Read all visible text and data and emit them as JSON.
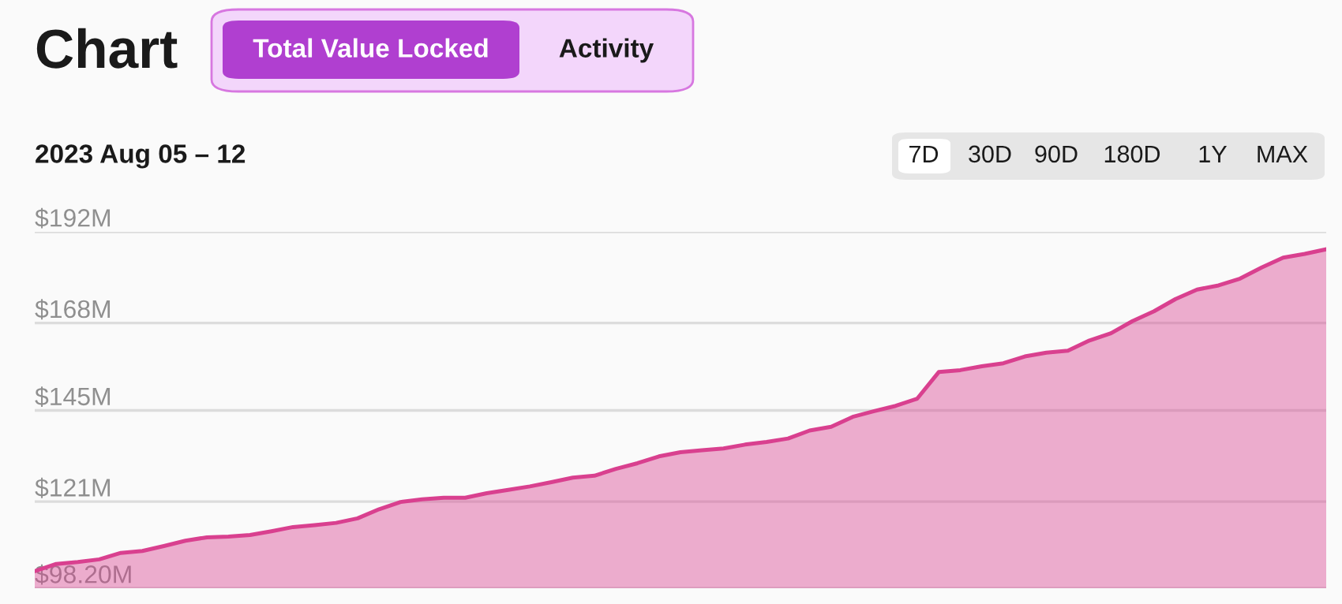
{
  "chart_data": {
    "type": "area",
    "title": "Chart",
    "subtitle": "2023 Aug 05 – 12",
    "annotations": [
      "Total Value Locked",
      "Activity",
      "7D",
      "30D",
      "90D",
      "180D",
      "1Y",
      "MAX"
    ],
    "categories": [
      null,
      null,
      null,
      null,
      null,
      null,
      null,
      null,
      null,
      null,
      null,
      null,
      null,
      null,
      null,
      null,
      null,
      null,
      null,
      null,
      null,
      null,
      null,
      null,
      null,
      null,
      null,
      null,
      null,
      null,
      null,
      null,
      null,
      null,
      null,
      null,
      null,
      null,
      null,
      null,
      null,
      null,
      null,
      null,
      null,
      null,
      null,
      null,
      null,
      null,
      null,
      null,
      null,
      null,
      null,
      null,
      null,
      null,
      null,
      null,
      null
    ],
    "series": [
      {
        "color": "#d9408f",
        "values": [
          102.7,
          104.6,
          105.1,
          105.8,
          107.5,
          108.0,
          109.3,
          110.7,
          111.6,
          111.8,
          112.2,
          113.2,
          114.3,
          114.8,
          115.4,
          116.6,
          119.0,
          120.9,
          121.6,
          122.0,
          122.0,
          123.2,
          124.1,
          125.0,
          126.1,
          127.3,
          127.8,
          129.6,
          131.1,
          132.9,
          134.0,
          134.5,
          135.0,
          136.0,
          136.7,
          137.6,
          139.7,
          140.7,
          143.3,
          144.8,
          146.2,
          148.1,
          155.1,
          155.6,
          156.6,
          157.4,
          159.2,
          160.2,
          160.7,
          163.4,
          165.3,
          168.5,
          171.1,
          174.3,
          176.8,
          177.9,
          179.7,
          182.6,
          185.2,
          186.2,
          187.4
        ]
      }
    ],
    "ylim": [
      98.2,
      192
    ],
    "yticks": [
      {
        "value": 98.2,
        "label": "$98.20M"
      },
      {
        "value": 121,
        "label": "$121M"
      },
      {
        "value": 145,
        "label": "$145M"
      },
      {
        "value": 168,
        "label": "$168M"
      },
      {
        "value": 192,
        "label": "$192M"
      }
    ],
    "grid": "y",
    "tick_labels": "y"
  }
}
